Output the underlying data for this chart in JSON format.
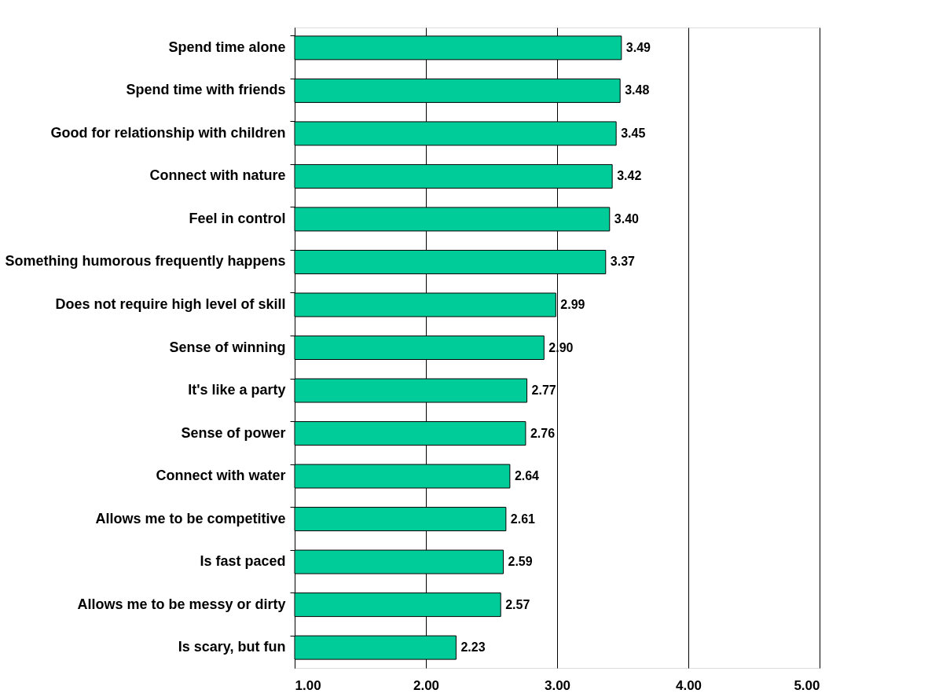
{
  "chart_data": {
    "type": "bar",
    "orientation": "horizontal",
    "categories": [
      "Spend time alone",
      "Spend time with friends",
      "Good for relationship with children",
      "Connect with nature",
      "Feel in control",
      "Something humorous frequently happens",
      "Does not require high level of skill",
      "Sense of winning",
      "It's like a party",
      "Sense of power",
      "Connect with water",
      "Allows me to be competitive",
      "Is fast paced",
      "Allows me to be messy or dirty",
      "Is scary, but fun"
    ],
    "values": [
      3.49,
      3.48,
      3.45,
      3.42,
      3.4,
      3.37,
      2.99,
      2.9,
      2.77,
      2.76,
      2.64,
      2.61,
      2.59,
      2.57,
      2.23
    ],
    "color": "#00cc99",
    "xlim": [
      1,
      5
    ],
    "xticks": [
      {
        "value": 1,
        "label": "1.00"
      },
      {
        "value": 2,
        "label": "2.00"
      },
      {
        "value": 3,
        "label": "3.00"
      },
      {
        "value": 4,
        "label": "4.00"
      },
      {
        "value": 5,
        "label": "5.00"
      }
    ],
    "value_labels": [
      "3.49",
      "3.48",
      "3.45",
      "3.42",
      "3.40",
      "3.37",
      "2.99",
      "2.90",
      "2.77",
      "2.76",
      "2.64",
      "2.61",
      "2.59",
      "2.57",
      "2.23"
    ],
    "grid": "x"
  }
}
